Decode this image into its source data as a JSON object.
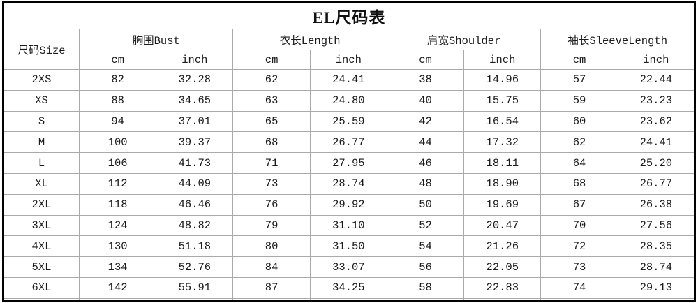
{
  "chart_data": {
    "type": "table",
    "title": "EL尺码表",
    "size_column_header": "尺码Size",
    "group_headers": [
      "胸围Bust",
      "衣长Length",
      "肩宽Shoulder",
      "袖长SleeveLength"
    ],
    "unit_headers": [
      "cm",
      "inch"
    ],
    "columns": [
      "尺码Size",
      "胸围Bust cm",
      "胸围Bust inch",
      "衣长Length cm",
      "衣长Length inch",
      "肩宽Shoulder cm",
      "肩宽Shoulder inch",
      "袖长SleeveLength cm",
      "袖长SleeveLength inch"
    ],
    "rows": [
      {
        "size": "2XS",
        "values": [
          "82",
          "32.28",
          "62",
          "24.41",
          "38",
          "14.96",
          "57",
          "22.44"
        ]
      },
      {
        "size": "XS",
        "values": [
          "88",
          "34.65",
          "63",
          "24.80",
          "40",
          "15.75",
          "59",
          "23.23"
        ]
      },
      {
        "size": "S",
        "values": [
          "94",
          "37.01",
          "65",
          "25.59",
          "42",
          "16.54",
          "60",
          "23.62"
        ]
      },
      {
        "size": "M",
        "values": [
          "100",
          "39.37",
          "68",
          "26.77",
          "44",
          "17.32",
          "62",
          "24.41"
        ]
      },
      {
        "size": "L",
        "values": [
          "106",
          "41.73",
          "71",
          "27.95",
          "46",
          "18.11",
          "64",
          "25.20"
        ]
      },
      {
        "size": "XL",
        "values": [
          "112",
          "44.09",
          "73",
          "28.74",
          "48",
          "18.90",
          "68",
          "26.77"
        ]
      },
      {
        "size": "2XL",
        "values": [
          "118",
          "46.46",
          "76",
          "29.92",
          "50",
          "19.69",
          "67",
          "26.38"
        ]
      },
      {
        "size": "3XL",
        "values": [
          "124",
          "48.82",
          "79",
          "31.10",
          "52",
          "20.47",
          "70",
          "27.56"
        ]
      },
      {
        "size": "4XL",
        "values": [
          "130",
          "51.18",
          "80",
          "31.50",
          "54",
          "21.26",
          "72",
          "28.35"
        ]
      },
      {
        "size": "5XL",
        "values": [
          "134",
          "52.76",
          "84",
          "33.07",
          "56",
          "22.05",
          "73",
          "28.74"
        ]
      },
      {
        "size": "6XL",
        "values": [
          "142",
          "55.91",
          "87",
          "34.25",
          "58",
          "22.83",
          "74",
          "29.13"
        ]
      },
      {
        "size": "",
        "values": [
          "",
          "",
          "",
          "",
          "",
          "",
          "",
          ""
        ]
      }
    ]
  },
  "colors": {
    "outer_border": "#000000",
    "grid_line": "#aaaaaa",
    "text": "#1c1c1c",
    "background": "#ffffff"
  }
}
